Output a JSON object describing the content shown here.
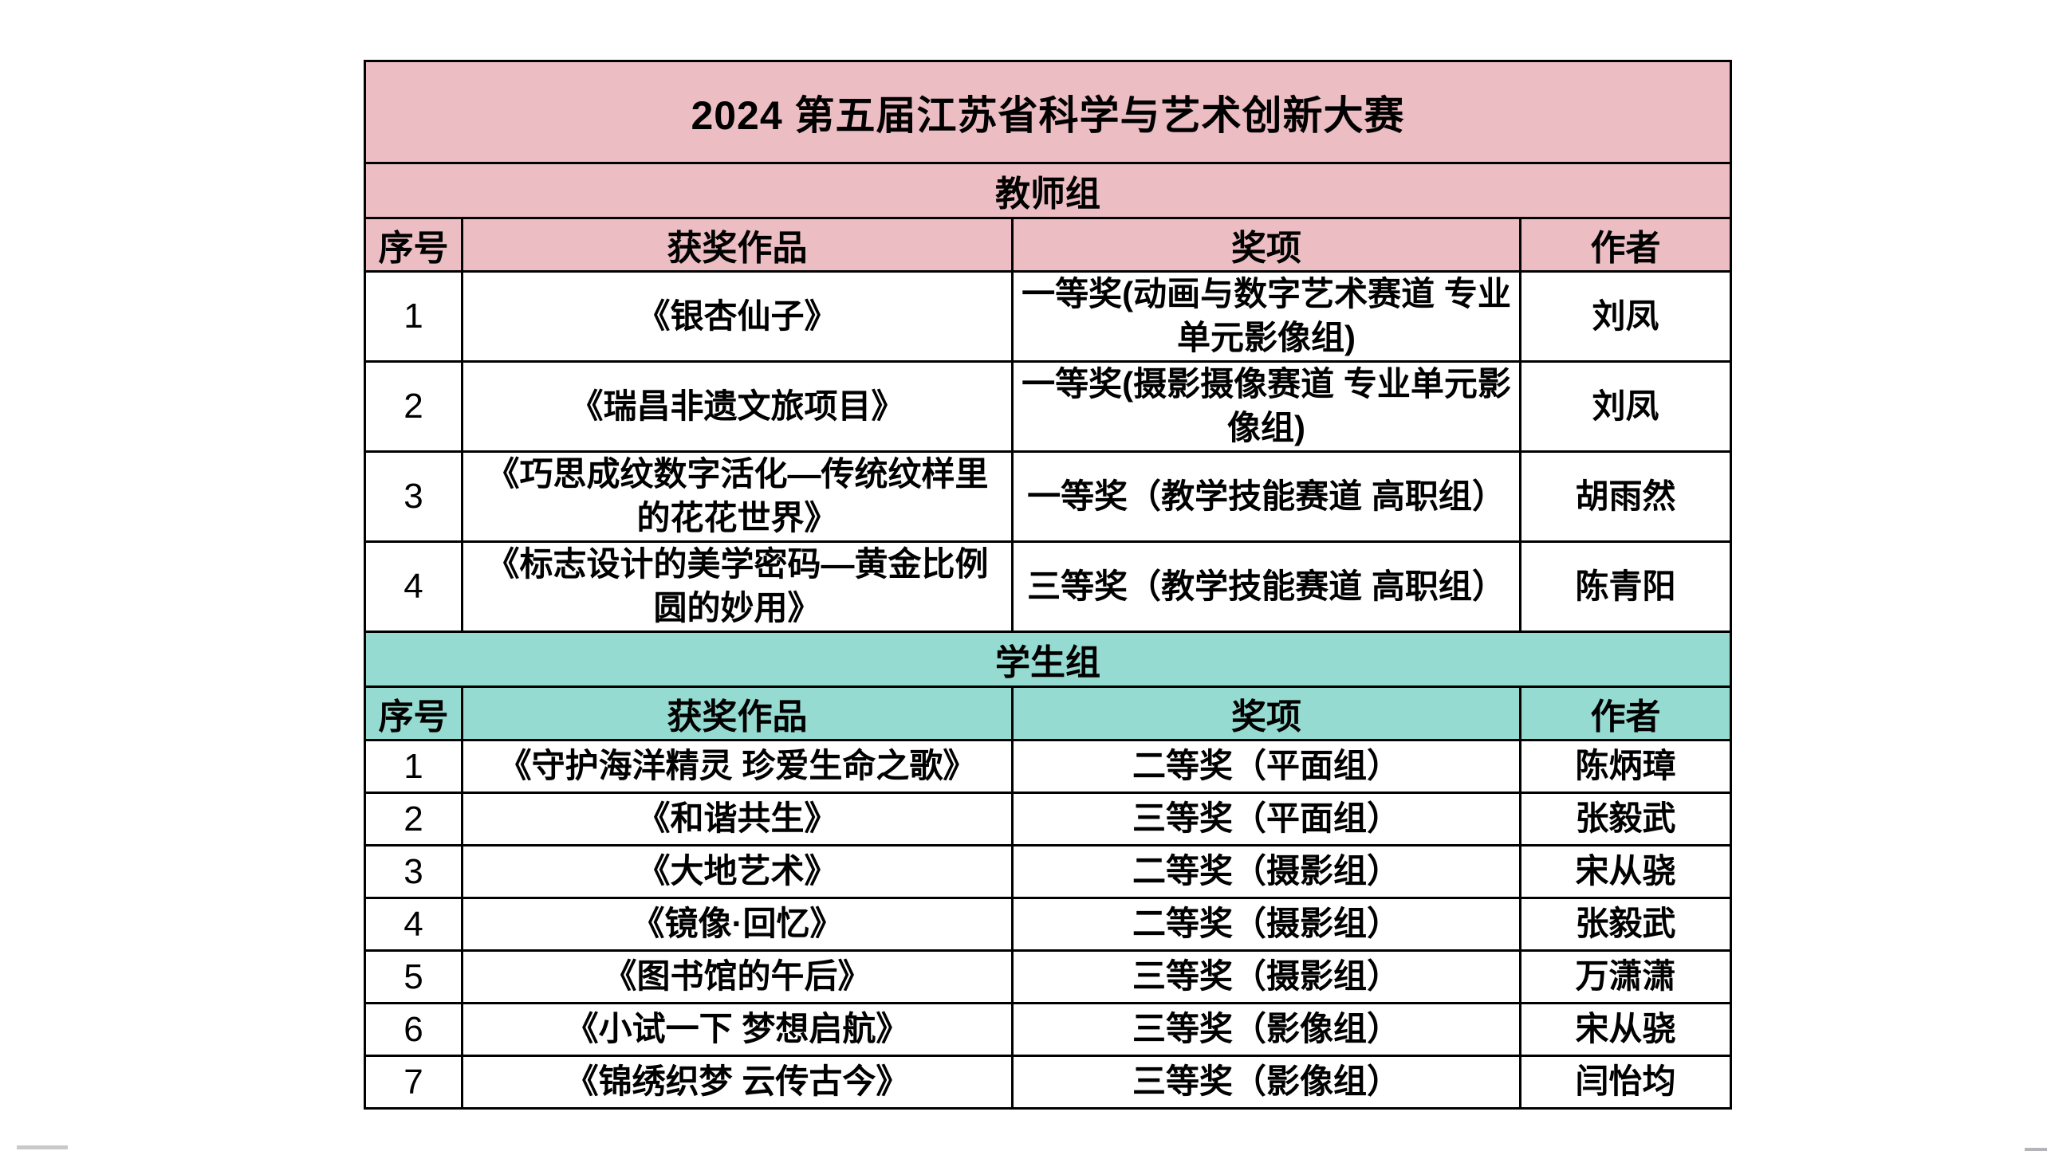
{
  "table": {
    "title": "2024 第五届江苏省科学与艺术创新大赛",
    "colors": {
      "teacher_band_bg": "#ecbdc3",
      "student_band_bg": "#95dbd2",
      "border": "#000000",
      "text": "#000000",
      "row_bg": "#ffffff"
    },
    "columns": [
      "序号",
      "获奖作品",
      "奖项",
      "作者"
    ],
    "sections": [
      {
        "name": "教师组",
        "theme": "teacher",
        "rows": [
          {
            "no": "1",
            "work": "《银杏仙子》",
            "award": "一等奖(动画与数字艺术赛道 专业单元影像组)",
            "author": "刘凤"
          },
          {
            "no": "2",
            "work": "《瑞昌非遗文旅项目》",
            "award": "一等奖(摄影摄像赛道 专业单元影像组)",
            "author": "刘凤"
          },
          {
            "no": "3",
            "work": "《巧思成纹数字活化—传统纹样里的花花世界》",
            "award": "一等奖（教学技能赛道 高职组）",
            "author": "胡雨然"
          },
          {
            "no": "4",
            "work": "《标志设计的美学密码—黄金比例圆的妙用》",
            "award": "三等奖（教学技能赛道 高职组）",
            "author": "陈青阳"
          }
        ]
      },
      {
        "name": "学生组",
        "theme": "student",
        "rows": [
          {
            "no": "1",
            "work": "《守护海洋精灵 珍爱生命之歌》",
            "award": "二等奖（平面组）",
            "author": "陈炳璋"
          },
          {
            "no": "2",
            "work": "《和谐共生》",
            "award": "三等奖（平面组）",
            "author": "张毅武"
          },
          {
            "no": "3",
            "work": "《大地艺术》",
            "award": "二等奖（摄影组）",
            "author": "宋从骁"
          },
          {
            "no": "4",
            "work": "《镜像·回忆》",
            "award": "二等奖（摄影组）",
            "author": "张毅武"
          },
          {
            "no": "5",
            "work": "《图书馆的午后》",
            "award": "三等奖（摄影组）",
            "author": "万潇潇"
          },
          {
            "no": "6",
            "work": "《小试一下 梦想启航》",
            "award": "三等奖（影像组）",
            "author": "宋从骁"
          },
          {
            "no": "7",
            "work": "《锦绣织梦 云传古今》",
            "award": "三等奖（影像组）",
            "author": "闫怡均"
          }
        ]
      }
    ]
  }
}
